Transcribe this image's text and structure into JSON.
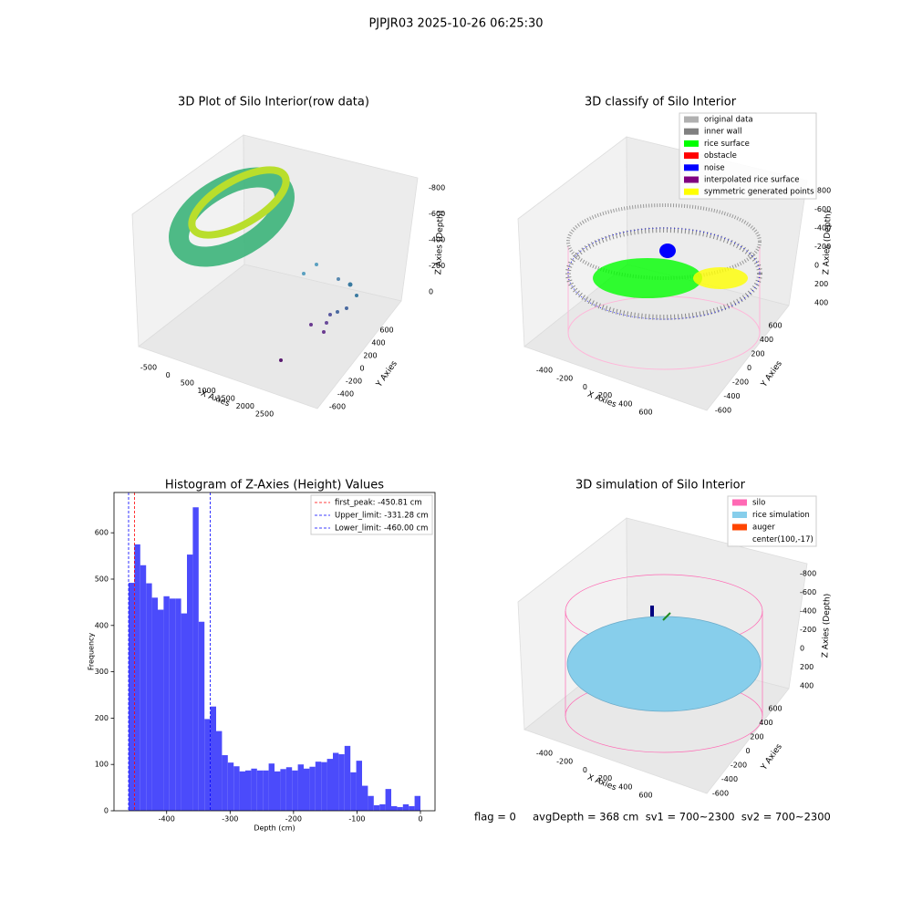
{
  "title": "PJPJR03 2025-10-26 06:25:30",
  "footer": "flag = 0     avgDepth = 368 cm  sv1 = 700~2300  sv2 = 700~2300",
  "chart_data": [
    {
      "type": "scatter3d",
      "title": "3D Plot of Silo Interior(row data)",
      "xlabel": "X Axies",
      "ylabel": "Y Axies",
      "zlabel": "Z Axies (Depth)",
      "xlim": [
        -500,
        2500
      ],
      "xticks": [
        -500,
        0,
        500,
        1000,
        1500,
        2000,
        2500
      ],
      "ylim": [
        -600,
        600
      ],
      "yticks": [
        -600,
        -400,
        -200,
        0,
        200,
        400,
        600
      ],
      "zlim": [
        -800,
        0
      ],
      "zticks": [
        0,
        -200,
        -400,
        -600,
        -800
      ]
    },
    {
      "type": "scatter3d",
      "title": "3D classify of Silo Interior",
      "xlabel": "X Axies",
      "ylabel": "Y Axies",
      "zlabel": "Z Axies (Depth)",
      "xlim": [
        -400,
        600
      ],
      "xticks": [
        -400,
        -200,
        0,
        200,
        400,
        600
      ],
      "ylim": [
        -600,
        600
      ],
      "yticks": [
        -600,
        -400,
        -200,
        0,
        200,
        400,
        600
      ],
      "zlim": [
        -800,
        400
      ],
      "zticks": [
        400,
        200,
        0,
        -200,
        -400,
        -600,
        -800
      ],
      "legend": [
        {
          "name": "original data",
          "color": "#b0b0b0"
        },
        {
          "name": "inner wall",
          "color": "#808080"
        },
        {
          "name": "rice surface",
          "color": "#00ff00"
        },
        {
          "name": "obstacle",
          "color": "#ff0000"
        },
        {
          "name": "noise",
          "color": "#0000ff"
        },
        {
          "name": "interpolated rice surface",
          "color": "#800080"
        },
        {
          "name": "symmetric generated points",
          "color": "#ffff00"
        }
      ]
    },
    {
      "type": "histogram",
      "title": "Histogram of Z-Axies (Height) Values",
      "xlabel": "Depth (cm)",
      "ylabel": "Frequency",
      "color": "#4b4bfb",
      "bins": [
        -460,
        -450.8,
        -441.6,
        -432.4,
        -423.2,
        -414,
        -404.8,
        -395.6,
        -386.4,
        -377.2,
        -368,
        -358.8,
        -349.6,
        -340.4,
        -331.2,
        -322,
        -312.8,
        -303.6,
        -294.4,
        -285.2,
        -276,
        -266.8,
        -257.6,
        -248.4,
        -239.2,
        -230,
        -220.8,
        -211.6,
        -202.4,
        -193.2,
        -184,
        -174.8,
        -165.6,
        -156.4,
        -147.2,
        -138,
        -128.8,
        -119.6,
        -110.4,
        -101.2,
        -92,
        -82.8,
        -73.6,
        -64.4,
        -55.2,
        -46,
        -36.8,
        -27.6,
        -18.4,
        -9.2,
        0
      ],
      "values": [
        492,
        575,
        530,
        491,
        460,
        434,
        463,
        458,
        458,
        426,
        553,
        655,
        408,
        198,
        225,
        172,
        120,
        104,
        96,
        85,
        87,
        91,
        87,
        87,
        102,
        85,
        90,
        94,
        87,
        100,
        91,
        95,
        106,
        105,
        112,
        125,
        122,
        140,
        83,
        108,
        54,
        32,
        12,
        14,
        47,
        10,
        8,
        14,
        10,
        32
      ],
      "xlim": [
        -483,
        23
      ],
      "xticks": [
        -400,
        -300,
        -200,
        -100,
        0
      ],
      "ylim": [
        0,
        687
      ],
      "yticks": [
        0,
        100,
        200,
        300,
        400,
        500,
        600
      ],
      "lines": [
        {
          "name": "first_peak: -450.81 cm",
          "value": -450.81,
          "color": "#ff0000"
        },
        {
          "name": "Upper_limit: -331.28 cm",
          "value": -331.28,
          "color": "#0000ff"
        },
        {
          "name": "Lower_limit: -460.00 cm",
          "value": -460,
          "color": "#0000ff"
        }
      ]
    },
    {
      "type": "surface3d",
      "title": "3D simulation of Silo Interior",
      "xlabel": "X Axies",
      "ylabel": "Y Axies",
      "zlabel": "Z Axies (Depth)",
      "xlim": [
        -400,
        600
      ],
      "xticks": [
        -400,
        -200,
        0,
        200,
        400,
        600
      ],
      "ylim": [
        -600,
        600
      ],
      "yticks": [
        -600,
        -400,
        -200,
        0,
        200,
        400,
        600
      ],
      "zlim": [
        -800,
        400
      ],
      "zticks": [
        400,
        200,
        0,
        -200,
        -400,
        -600,
        -800
      ],
      "legend": [
        {
          "name": "silo",
          "color": "#ff69b4"
        },
        {
          "name": "rice simulation",
          "color": "#87ceeb"
        },
        {
          "name": "auger",
          "color": "#ff4500"
        },
        {
          "name": "center(100,-17)"
        }
      ]
    }
  ]
}
